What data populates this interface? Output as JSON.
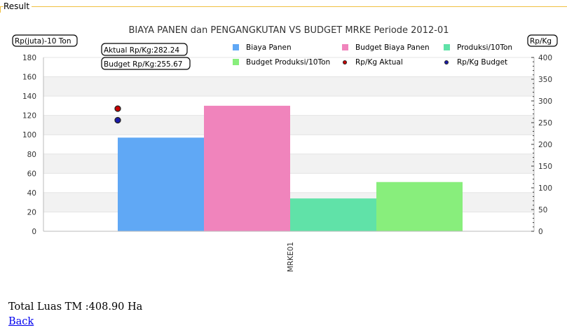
{
  "panel": {
    "title": "Result"
  },
  "chart_data": {
    "type": "bar",
    "title": "BIAYA PANEN dan PENGANGKUTAN VS BUDGET MRKE Periode 2012-01",
    "categories": [
      "MRKE01"
    ],
    "y_left": {
      "label": "Rp(juta)-10 Ton",
      "range": [
        0,
        180
      ],
      "ticks": [
        0,
        20,
        40,
        60,
        80,
        100,
        120,
        140,
        160,
        180
      ]
    },
    "y_right": {
      "label": "Rp/Kg",
      "range": [
        0,
        400
      ],
      "ticks": [
        0,
        50,
        100,
        150,
        200,
        250,
        300,
        350,
        400
      ]
    },
    "series": [
      {
        "name": "Biaya Panen",
        "values": [
          97
        ],
        "color": "#60a8f5",
        "kind": "bar"
      },
      {
        "name": "Budget Biaya Panen",
        "values": [
          130
        ],
        "color": "#f084bc",
        "kind": "bar"
      },
      {
        "name": "Produksi/10Ton",
        "values": [
          34
        ],
        "color": "#60e2a8",
        "kind": "bar"
      },
      {
        "name": "Budget Produksi/10Ton",
        "values": [
          51
        ],
        "color": "#88ee7c",
        "kind": "bar"
      },
      {
        "name": "Rp/Kg Aktual",
        "values": [
          282.24
        ],
        "color": "#c80000",
        "kind": "point",
        "axis": "right"
      },
      {
        "name": "Rp/Kg Budget",
        "values": [
          255.67
        ],
        "color": "#1a1aaa",
        "kind": "point",
        "axis": "right"
      }
    ],
    "annotations": [
      {
        "text": "Aktual Rp/Kg:282.24"
      },
      {
        "text": "Budget Rp/Kg:255.67"
      }
    ],
    "legend_position": "top-right",
    "grid": true
  },
  "footer": {
    "luas": "Total Luas TM :408.90 Ha",
    "back": "Back"
  }
}
